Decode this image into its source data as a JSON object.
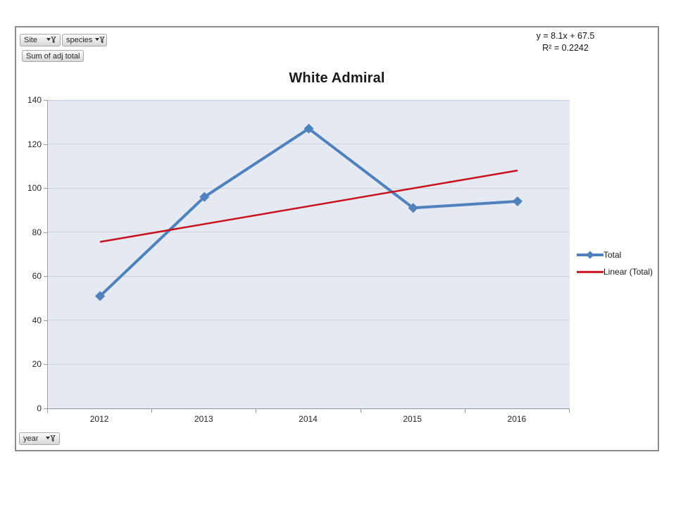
{
  "pivot_buttons": {
    "site_label": "Site",
    "species_label": "species",
    "value_label": "Sum of adj total",
    "axis_label": "year"
  },
  "equation": {
    "line1": "y = 8.1x + 67.5",
    "line2": "R² = 0.2242"
  },
  "chart_data": {
    "type": "line",
    "title": "White Admiral",
    "categories": [
      "2012",
      "2013",
      "2014",
      "2015",
      "2016"
    ],
    "series": [
      {
        "name": "Total",
        "values": [
          51,
          96,
          127,
          91,
          94
        ],
        "color": "#4f81bd",
        "marker": "diamond"
      }
    ],
    "trendline": {
      "name": "Linear (Total)",
      "slope": 8.1,
      "intercept": 67.5,
      "r_squared": 0.2242,
      "color": "#c9121f"
    },
    "xlabel": "year",
    "ylabel": "",
    "ylim": [
      0,
      140
    ],
    "ytick_step": 20,
    "yticks": [
      0,
      20,
      40,
      60,
      80,
      100,
      120,
      140
    ],
    "grid": true,
    "legend_position": "right",
    "plot_background": "#e5e9f2"
  }
}
